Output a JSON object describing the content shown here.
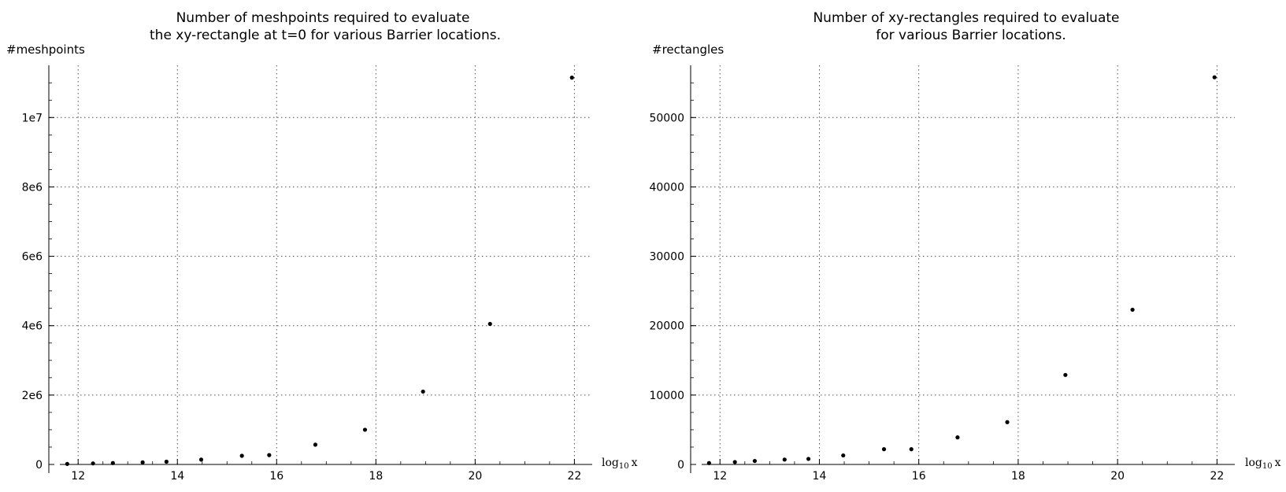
{
  "chart_data": [
    {
      "type": "scatter",
      "title_lines": [
        "Number of meshpoints required to evaluate",
        "the xy-rectangle at t=0 for various Barrier locations."
      ],
      "ylabel": "#meshpoints",
      "xlabel": "log10 x",
      "xlabel_base": "log",
      "xlabel_sub": "10",
      "xlabel_var": "x",
      "xlim": [
        11.6,
        22.2
      ],
      "ylim": [
        0,
        11300000
      ],
      "grid": true,
      "x_ticks": [
        12,
        14,
        16,
        18,
        20,
        22
      ],
      "x_tick_labels": [
        "12",
        "14",
        "16",
        "18",
        "20",
        "22"
      ],
      "y_ticks": [
        0,
        2000000,
        4000000,
        6000000,
        8000000,
        10000000
      ],
      "y_tick_labels": [
        "0",
        "2e6",
        "4e6",
        "6e6",
        "8e6",
        "1e7"
      ],
      "y_minor_step": 500000,
      "point_color": "#000000",
      "series": [
        {
          "x": [
            11.78,
            12.3,
            12.7,
            13.3,
            13.78,
            14.48,
            15.3,
            15.85,
            16.78,
            17.78,
            18.95,
            20.3,
            21.95
          ],
          "y": [
            15000,
            30000,
            40000,
            60000,
            80000,
            140000,
            250000,
            270000,
            570000,
            1000000,
            2100000,
            4050000,
            11150000
          ]
        }
      ]
    },
    {
      "type": "scatter",
      "title_lines": [
        "Number of xy-rectangles required to evaluate",
        "for various Barrier locations."
      ],
      "ylabel": "#rectangles",
      "xlabel": "log10 x",
      "xlabel_base": "log",
      "xlabel_sub": "10",
      "xlabel_var": "x",
      "xlim": [
        11.6,
        22.2
      ],
      "ylim": [
        0,
        56500
      ],
      "grid": true,
      "x_ticks": [
        12,
        14,
        16,
        18,
        20,
        22
      ],
      "x_tick_labels": [
        "12",
        "14",
        "16",
        "18",
        "20",
        "22"
      ],
      "y_ticks": [
        0,
        10000,
        20000,
        30000,
        40000,
        50000
      ],
      "y_tick_labels": [
        "0",
        "10000",
        "20000",
        "30000",
        "40000",
        "50000"
      ],
      "y_minor_step": 2500,
      "point_color": "#000000",
      "series": [
        {
          "x": [
            11.78,
            12.3,
            12.7,
            13.3,
            13.78,
            14.48,
            15.3,
            15.85,
            16.78,
            17.78,
            18.95,
            20.3,
            21.95
          ],
          "y": [
            200,
            350,
            500,
            700,
            800,
            1300,
            2200,
            2200,
            3900,
            6100,
            12900,
            22300,
            55800
          ]
        }
      ]
    }
  ]
}
